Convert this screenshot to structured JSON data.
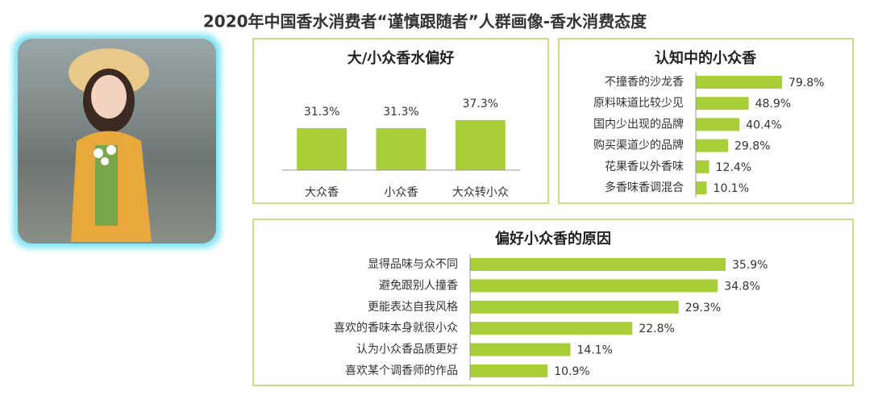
{
  "page_title": "2020年中国香水消费者“谨慎跟随者”人群画像-香水消费态度",
  "chart_data": [
    {
      "type": "bar",
      "orientation": "vertical",
      "title": "大/小众香水偏好",
      "color": "#a8cf38",
      "categories": [
        "大众香",
        "小众香",
        "大众转小众"
      ],
      "values": [
        31.3,
        31.3,
        37.3
      ],
      "value_labels": [
        "31.3%",
        "31.3%",
        "37.3%"
      ]
    },
    {
      "type": "bar",
      "orientation": "horizontal",
      "title": "认知中的小众香",
      "color": "#a8cf38",
      "categories": [
        "不撞香的沙龙香",
        "原料味道比较少见",
        "国内少出现的品牌",
        "购买渠道少的品牌",
        "花果香以外香味",
        "多香味香调混合"
      ],
      "values": [
        79.8,
        48.9,
        40.4,
        29.8,
        12.4,
        10.1
      ],
      "value_labels": [
        "79.8%",
        "48.9%",
        "40.4%",
        "29.8%",
        "12.4%",
        "10.1%"
      ]
    },
    {
      "type": "bar",
      "orientation": "horizontal",
      "title": "偏好小众香的原因",
      "color": "#a8cf38",
      "categories": [
        "显得品味与众不同",
        "避免跟别人撞香",
        "更能表达自我风格",
        "喜欢的香味本身就很小众",
        "认为小众香品质更好",
        "喜欢某个调香师的作品"
      ],
      "values": [
        35.9,
        34.8,
        29.3,
        22.8,
        14.1,
        10.9
      ],
      "value_labels": [
        "35.9%",
        "34.8%",
        "29.3%",
        "22.8%",
        "14.1%",
        "10.9%"
      ]
    }
  ]
}
